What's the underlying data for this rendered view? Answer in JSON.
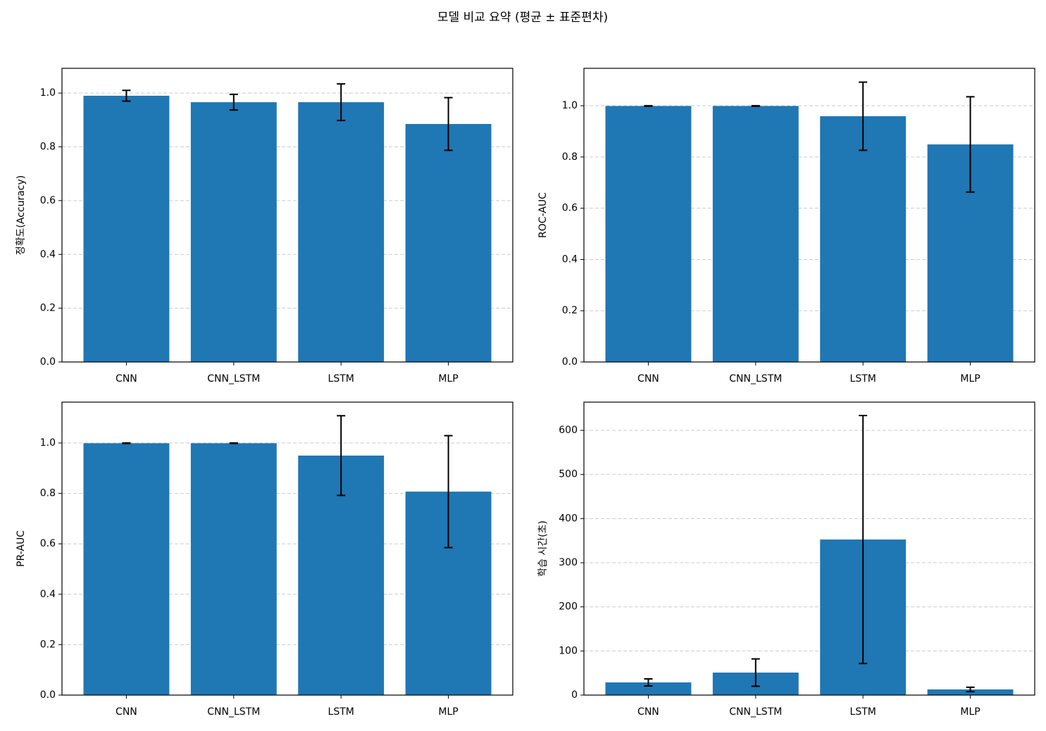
{
  "title": "모델 비교 요약 (평균 ± 표준편차)",
  "chart_data": [
    {
      "type": "bar",
      "y_label": "정확도(Accuracy)",
      "categories": [
        "CNN",
        "CNN_LSTM",
        "LSTM",
        "MLP"
      ],
      "values": [
        0.99,
        0.966,
        0.966,
        0.885
      ],
      "errors": [
        0.02,
        0.029,
        0.068,
        0.098
      ],
      "color": "#1f77b4",
      "ylim": [
        0,
        1.092
      ],
      "yticks": [
        {
          "value": 0,
          "label": "0.0"
        },
        0.2,
        0.4,
        0.6,
        0.8,
        {
          "value": 1,
          "label": "1.0"
        }
      ],
      "grid": true
    },
    {
      "type": "bar",
      "y_label": "ROC-AUC",
      "categories": [
        "CNN",
        "CNN_LSTM",
        "LSTM",
        "MLP"
      ],
      "values": [
        0.999,
        0.999,
        0.959,
        0.849
      ],
      "errors": [
        0.001,
        0.001,
        0.133,
        0.186
      ],
      "color": "#1f77b4",
      "ylim": [
        0,
        1.146
      ],
      "yticks": [
        {
          "value": 0,
          "label": "0.0"
        },
        0.2,
        0.4,
        0.6,
        0.8,
        {
          "value": 1,
          "label": "1.0"
        }
      ],
      "grid": true
    },
    {
      "type": "bar",
      "y_label": "PR-AUC",
      "categories": [
        "CNN",
        "CNN_LSTM",
        "LSTM",
        "MLP"
      ],
      "values": [
        0.999,
        0.999,
        0.95,
        0.807
      ],
      "errors": [
        0.001,
        0.001,
        0.158,
        0.222
      ],
      "color": "#1f77b4",
      "ylim": [
        0,
        1.162
      ],
      "yticks": [
        {
          "value": 0,
          "label": "0.0"
        },
        0.2,
        0.4,
        0.6,
        0.8,
        {
          "value": 1,
          "label": "1.0"
        }
      ],
      "grid": true
    },
    {
      "type": "bar",
      "y_label": "학습 시간(초)",
      "categories": [
        "CNN",
        "CNN_LSTM",
        "LSTM",
        "MLP"
      ],
      "values": [
        28.7,
        51,
        352.6,
        12.8
      ],
      "errors": [
        8,
        31,
        281,
        5
      ],
      "color": "#1f77b4",
      "ylim": [
        0,
        664
      ],
      "yticks": [
        0,
        100,
        200,
        300,
        400,
        500,
        600
      ],
      "grid": true
    }
  ]
}
